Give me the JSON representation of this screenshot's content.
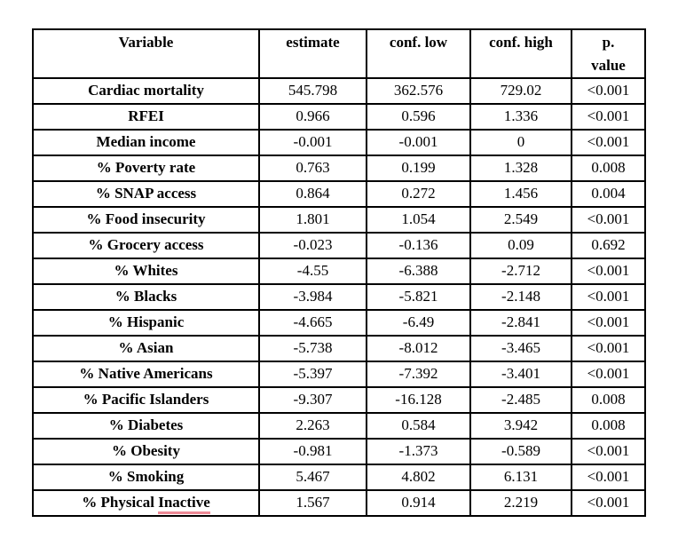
{
  "page": {
    "background": "#ffffff"
  },
  "colors": {
    "border": "#000000",
    "text": "#000000",
    "background": "#ffffff",
    "spellcheck_underline": "#ee8a96"
  },
  "table": {
    "headers": [
      "Variable",
      "estimate",
      "conf. low",
      "conf. high",
      "p.\nvalue"
    ],
    "rows": [
      {
        "label": "Cardiac mortality",
        "values": [
          "545.798",
          "362.576",
          "729.02",
          "<0.001"
        ]
      },
      {
        "label": "RFEI",
        "values": [
          "0.966",
          "0.596",
          "1.336",
          "<0.001"
        ]
      },
      {
        "label": "Median income",
        "values": [
          "-0.001",
          "-0.001",
          "0",
          "<0.001"
        ]
      },
      {
        "label": "% Poverty rate",
        "values": [
          "0.763",
          "0.199",
          "1.328",
          "0.008"
        ]
      },
      {
        "label": "% SNAP access",
        "values": [
          "0.864",
          "0.272",
          "1.456",
          "0.004"
        ]
      },
      {
        "label": "% Food insecurity",
        "values": [
          "1.801",
          "1.054",
          "2.549",
          "<0.001"
        ]
      },
      {
        "label": "% Grocery access",
        "values": [
          "-0.023",
          "-0.136",
          "0.09",
          "0.692"
        ]
      },
      {
        "label": "% Whites",
        "values": [
          "-4.55",
          "-6.388",
          "-2.712",
          "<0.001"
        ]
      },
      {
        "label": "% Blacks",
        "values": [
          "-3.984",
          "-5.821",
          "-2.148",
          "<0.001"
        ]
      },
      {
        "label": "% Hispanic",
        "values": [
          "-4.665",
          "-6.49",
          "-2.841",
          "<0.001"
        ]
      },
      {
        "label": "% Asian",
        "values": [
          "-5.738",
          "-8.012",
          "-3.465",
          "<0.001"
        ]
      },
      {
        "label": "% Native Americans",
        "values": [
          "-5.397",
          "-7.392",
          "-3.401",
          "<0.001"
        ]
      },
      {
        "label": "% Pacific Islanders",
        "values": [
          "-9.307",
          "-16.128",
          "-2.485",
          "0.008"
        ]
      },
      {
        "label": "% Diabetes",
        "values": [
          "2.263",
          "0.584",
          "3.942",
          "0.008"
        ]
      },
      {
        "label": "% Obesity",
        "values": [
          "-0.981",
          "-1.373",
          "-0.589",
          "<0.001"
        ]
      },
      {
        "label": "% Smoking",
        "values": [
          "5.467",
          "4.802",
          "6.131",
          "<0.001"
        ]
      },
      {
        "label": "% Physical Inactive",
        "values": [
          "1.567",
          "0.914",
          "2.219",
          "<0.001"
        ],
        "spellcheck_word": "Inactive"
      }
    ]
  }
}
